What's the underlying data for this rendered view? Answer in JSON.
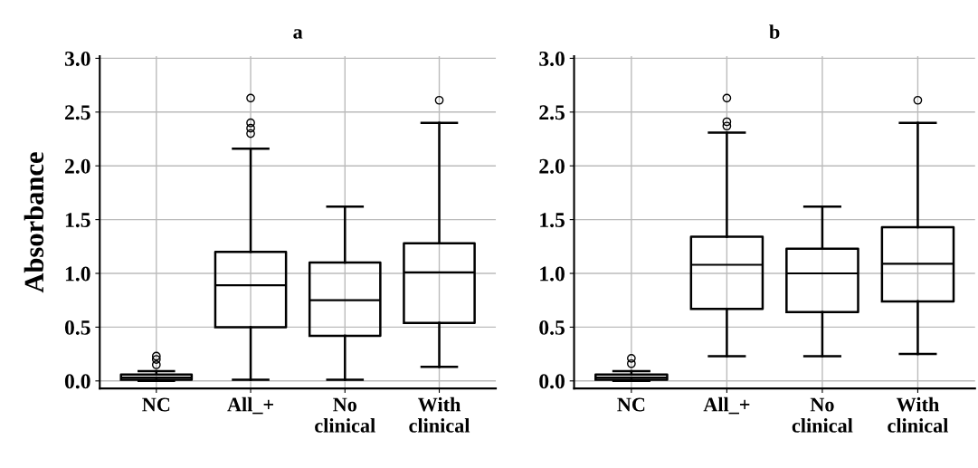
{
  "chart_data": [
    {
      "type": "box",
      "title": "a",
      "ylabel": "Absorbance",
      "categories": [
        "NC",
        "All_+",
        "No\nclinical",
        "With\nclinical"
      ],
      "boxes": [
        {
          "low": 0.0,
          "q1": 0.01,
          "median": 0.03,
          "q3": 0.06,
          "high": 0.09,
          "outliers": [
            0.15,
            0.2,
            0.23
          ]
        },
        {
          "low": 0.01,
          "q1": 0.5,
          "median": 0.89,
          "q3": 1.2,
          "high": 2.16,
          "outliers": [
            2.3,
            2.35,
            2.4,
            2.63
          ]
        },
        {
          "low": 0.01,
          "q1": 0.42,
          "median": 0.75,
          "q3": 1.1,
          "high": 1.62
        },
        {
          "low": 0.13,
          "q1": 0.54,
          "median": 1.01,
          "q3": 1.28,
          "high": 2.4,
          "outliers": [
            2.61
          ]
        }
      ],
      "ylim": [
        -0.07,
        3.02
      ],
      "yticks": [
        {
          "value": 0,
          "label": "0.0"
        },
        0.5,
        {
          "value": 1,
          "label": "1.0"
        },
        1.5,
        {
          "value": 2,
          "label": "2.0"
        },
        2.5,
        {
          "value": 3,
          "label": "3.0"
        }
      ],
      "grid": true,
      "marker": "circle"
    },
    {
      "type": "box",
      "title": "b",
      "categories": [
        "NC",
        "All_+",
        "No\nclinical",
        "With\nclinical"
      ],
      "boxes": [
        {
          "low": 0.0,
          "q1": 0.01,
          "median": 0.03,
          "q3": 0.06,
          "high": 0.09,
          "outliers": [
            0.16,
            0.21
          ]
        },
        {
          "low": 0.23,
          "q1": 0.67,
          "median": 1.08,
          "q3": 1.34,
          "high": 2.31,
          "outliers": [
            2.37,
            2.41,
            2.63
          ]
        },
        {
          "low": 0.23,
          "q1": 0.64,
          "median": 1.0,
          "q3": 1.23,
          "high": 1.62
        },
        {
          "low": 0.25,
          "q1": 0.74,
          "median": 1.09,
          "q3": 1.43,
          "high": 2.4,
          "outliers": [
            2.61
          ]
        }
      ],
      "ylim": [
        -0.07,
        3.02
      ],
      "yticks": [
        {
          "value": 0,
          "label": "0.0"
        },
        0.5,
        {
          "value": 1,
          "label": "1.0"
        },
        1.5,
        {
          "value": 2,
          "label": "2.0"
        },
        2.5,
        {
          "value": 3,
          "label": "3.0"
        }
      ],
      "grid": true,
      "marker": "circle"
    }
  ]
}
